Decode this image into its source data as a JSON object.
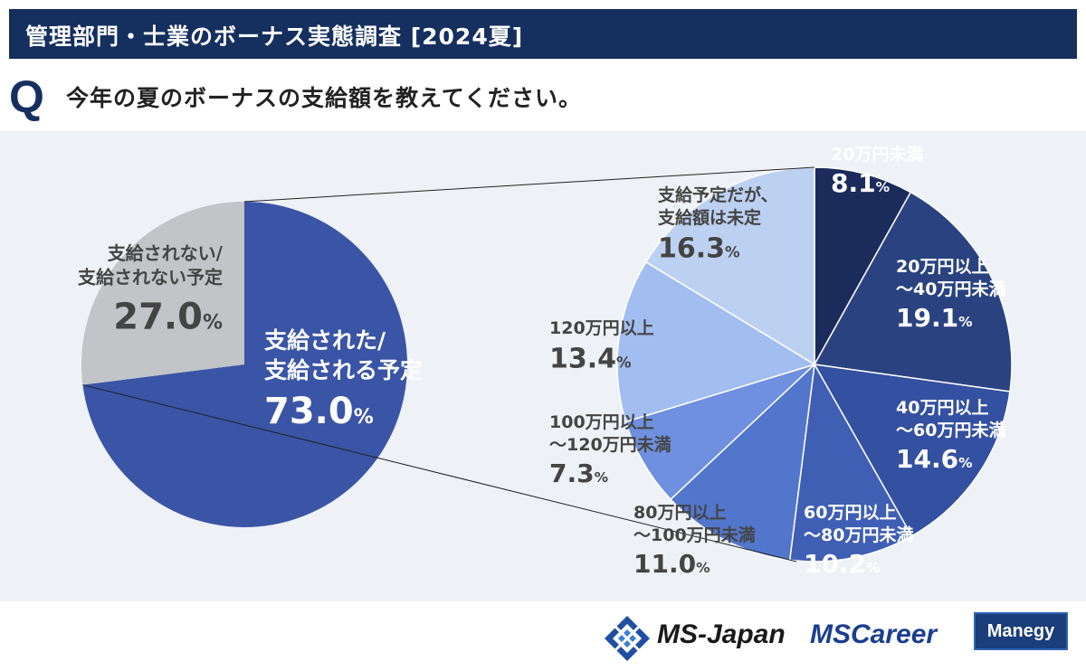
{
  "header": {
    "title": "管理部門・士業のボーナス実態調査 [2024夏]"
  },
  "question": {
    "mark": "Q",
    "text": "今年の夏のボーナスの支給額を教えてください。"
  },
  "chart_data": [
    {
      "type": "pie",
      "title": "",
      "slices": [
        {
          "label_lines": [
            "支給された/",
            "支給される予定"
          ],
          "value": 73.0,
          "display": "73.0",
          "color": "#3a55a6"
        },
        {
          "label_lines": [
            "支給されない/",
            "支給されない予定"
          ],
          "value": 27.0,
          "display": "27.0",
          "color": "#c2c4c7"
        }
      ]
    },
    {
      "type": "pie",
      "title": "",
      "slices": [
        {
          "label_lines": [
            "20万円未満"
          ],
          "value": 8.1,
          "display": "8.1",
          "color": "#1b2c5c"
        },
        {
          "label_lines": [
            "20万円以上",
            "～40万円未満"
          ],
          "value": 19.1,
          "display": "19.1",
          "color": "#2a4380"
        },
        {
          "label_lines": [
            "40万円以上",
            "～60万円未満"
          ],
          "value": 14.6,
          "display": "14.6",
          "color": "#3450a0"
        },
        {
          "label_lines": [
            "60万円以上",
            "～80万円未満"
          ],
          "value": 10.2,
          "display": "10.2",
          "color": "#3f5fb5"
        },
        {
          "label_lines": [
            "80万円以上",
            "～100万円未満"
          ],
          "value": 11.0,
          "display": "11.0",
          "color": "#5276cc"
        },
        {
          "label_lines": [
            "100万円以上",
            "～120万円未満"
          ],
          "value": 7.3,
          "display": "7.3",
          "color": "#6f90de"
        },
        {
          "label_lines": [
            "120万円以上"
          ],
          "value": 13.4,
          "display": "13.4",
          "color": "#a2bdf0"
        },
        {
          "label_lines": [
            "支給予定だが、",
            "支給額は未定"
          ],
          "value": 16.3,
          "display": "16.3",
          "color": "#bcd1f1"
        }
      ]
    }
  ],
  "percent_sign": "%",
  "brand": {
    "ms_japan": "MS-Japan",
    "ms_career": "MSCareer",
    "manegy": "Manegy"
  }
}
